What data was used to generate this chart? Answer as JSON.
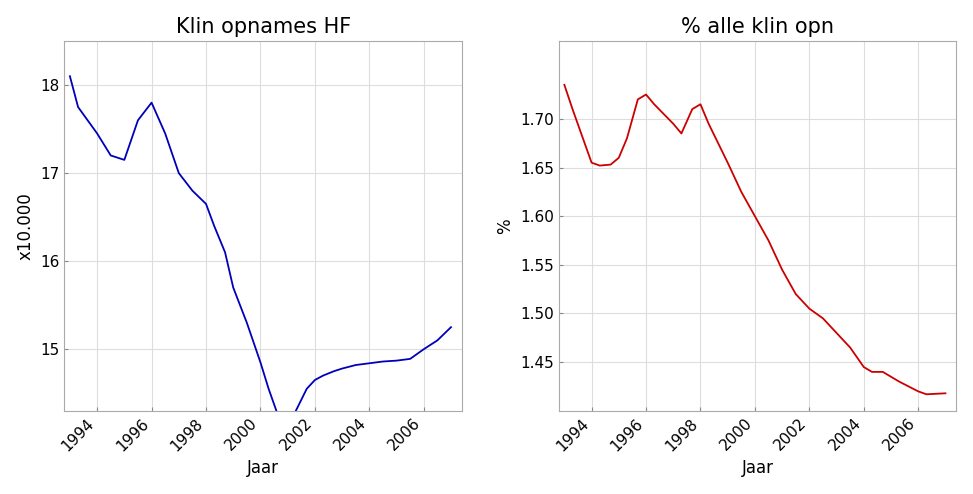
{
  "left_title": "Klin opnames HF",
  "right_title": "% alle klin opn",
  "xlabel": "Jaar",
  "left_ylabel": "x10.000",
  "right_ylabel": "%",
  "bg_color": "#ffffff",
  "plot_bg_color": "#ffffff",
  "left_line_color": "#0000bb",
  "right_line_color": "#cc0000",
  "left_years": [
    1993,
    1993.3,
    1994,
    1994.5,
    1995,
    1995.5,
    1996,
    1996.5,
    1997,
    1997.5,
    1998,
    1998.3,
    1998.7,
    1999,
    1999.5,
    2000,
    2000.3,
    2000.7,
    2001,
    2001.3,
    2001.7,
    2002,
    2002.3,
    2002.7,
    2003,
    2003.5,
    2004,
    2004.5,
    2005,
    2005.5,
    2006,
    2006.5,
    2007
  ],
  "left_values": [
    18.1,
    17.75,
    17.45,
    17.2,
    17.15,
    17.6,
    17.8,
    17.45,
    17.0,
    16.8,
    16.65,
    16.4,
    16.1,
    15.7,
    15.3,
    14.85,
    14.55,
    14.2,
    14.0,
    14.3,
    14.55,
    14.65,
    14.7,
    14.75,
    14.78,
    14.82,
    14.84,
    14.86,
    14.87,
    14.89,
    15.0,
    15.1,
    15.25
  ],
  "right_years": [
    1993,
    1993.3,
    1994,
    1994.3,
    1994.7,
    1995,
    1995.3,
    1995.7,
    1996,
    1996.3,
    1997,
    1997.3,
    1997.7,
    1998,
    1998.3,
    1999,
    1999.5,
    2000,
    2000.5,
    2001,
    2001.5,
    2002,
    2002.5,
    2003,
    2003.5,
    2004,
    2004.3,
    2004.7,
    2005,
    2005.3,
    2006,
    2006.3,
    2007
  ],
  "right_values": [
    1.735,
    1.71,
    1.655,
    1.652,
    1.653,
    1.66,
    1.68,
    1.72,
    1.725,
    1.715,
    1.695,
    1.685,
    1.71,
    1.715,
    1.695,
    1.655,
    1.625,
    1.6,
    1.575,
    1.545,
    1.52,
    1.505,
    1.495,
    1.48,
    1.465,
    1.445,
    1.44,
    1.44,
    1.435,
    1.43,
    1.42,
    1.417,
    1.418
  ],
  "left_yticks": [
    15,
    16,
    17,
    18
  ],
  "right_yticks": [
    1.45,
    1.5,
    1.55,
    1.6,
    1.65,
    1.7
  ],
  "xticks": [
    1994,
    1996,
    1998,
    2000,
    2002,
    2004,
    2006
  ],
  "left_xlim": [
    1992.8,
    2007.4
  ],
  "right_xlim": [
    1992.8,
    2007.4
  ],
  "left_ylim": [
    14.3,
    18.5
  ],
  "right_ylim": [
    1.4,
    1.78
  ],
  "title_fontsize": 15,
  "label_fontsize": 12,
  "tick_fontsize": 11,
  "grid_color": "#dddddd",
  "spine_color": "#aaaaaa"
}
